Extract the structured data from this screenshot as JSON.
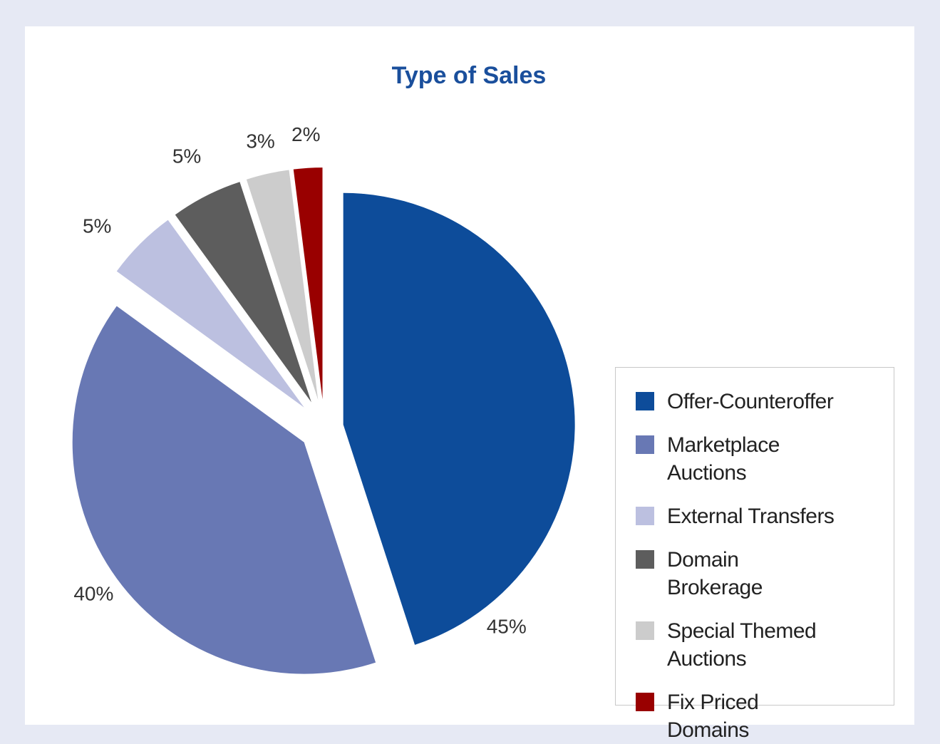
{
  "chart_data": {
    "type": "pie",
    "title": "Type of Sales",
    "categories": [
      "Offer-Counteroffer",
      "Marketplace Auctions",
      "External Transfers",
      "Domain Brokerage",
      "Special Themed Auctions",
      "Fix Priced Domains"
    ],
    "values": [
      45,
      40,
      5,
      5,
      3,
      2
    ],
    "value_labels": [
      "45%",
      "40%",
      "5%",
      "5%",
      "3%",
      "2%"
    ],
    "colors": [
      "#0d4c9a",
      "#6878b4",
      "#bcc0e0",
      "#5d5d5d",
      "#cccccc",
      "#990000"
    ],
    "legend": "right"
  }
}
